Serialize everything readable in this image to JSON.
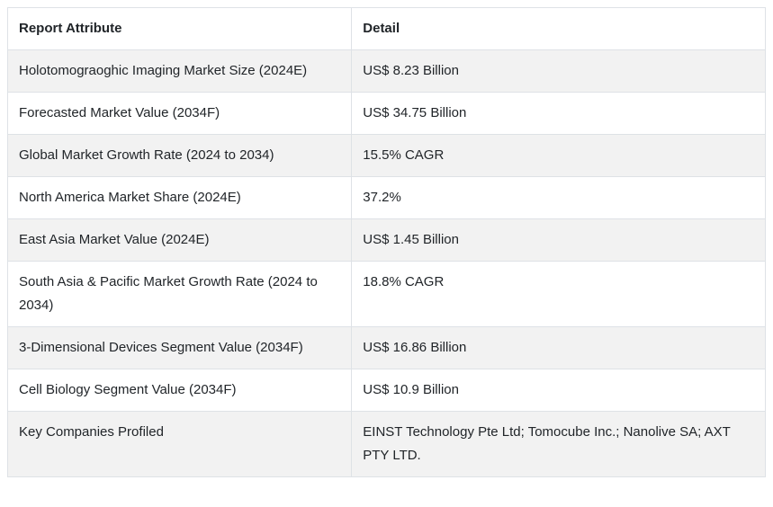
{
  "colors": {
    "border": "#dee2e6",
    "stripe": "#f2f2f2",
    "text": "#212529",
    "background": "#ffffff"
  },
  "table": {
    "columns": [
      {
        "label": "Report Attribute"
      },
      {
        "label": "Detail"
      }
    ],
    "rows": [
      {
        "attribute": "Holotomograoghic Imaging Market Size (2024E)",
        "detail": "US$ 8.23 Billion"
      },
      {
        "attribute": "Forecasted Market Value (2034F)",
        "detail": "US$ 34.75 Billion"
      },
      {
        "attribute": "Global Market Growth Rate (2024 to 2034)",
        "detail": "15.5% CAGR"
      },
      {
        "attribute": "North America Market Share (2024E)",
        "detail": "37.2%"
      },
      {
        "attribute": "East Asia Market Value (2024E)",
        "detail": "US$ 1.45 Billion"
      },
      {
        "attribute": "South Asia & Pacific Market Growth Rate (2024 to 2034)",
        "detail": "18.8% CAGR"
      },
      {
        "attribute": "3-Dimensional Devices Segment Value (2034F)",
        "detail": "US$ 16.86 Billion"
      },
      {
        "attribute": "Cell Biology Segment Value (2034F)",
        "detail": "US$ 10.9 Billion"
      },
      {
        "attribute": "Key Companies Profiled",
        "detail": "EINST Technology Pte Ltd; Tomocube Inc.; Nanolive SA; AXT PTY LTD."
      }
    ]
  }
}
